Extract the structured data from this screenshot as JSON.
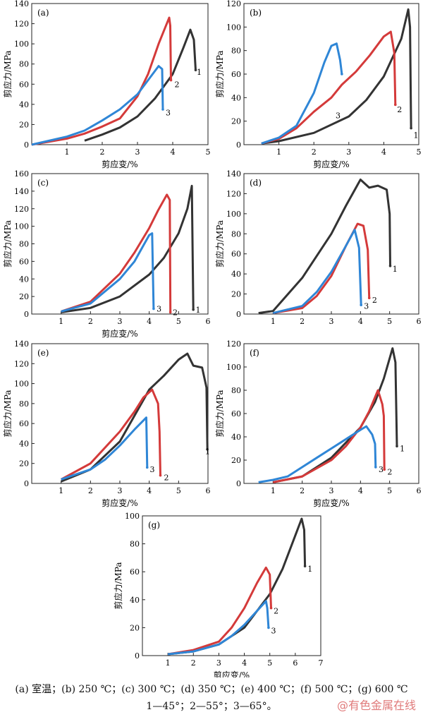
{
  "caption": {
    "line1": "(a) 室温；(b) 250 ℃；(c) 300 ℃；(d) 350 ℃；(e) 400 ℃；(f) 500 ℃；(g) 600 ℃",
    "line2": "1—45°；2—55°；3—65°。"
  },
  "watermark": "@有色金属在线",
  "series_colors": {
    "1": "#333333",
    "2": "#d43a3a",
    "3": "#2f86d6"
  },
  "chart_data": [
    {
      "type": "line",
      "panel": "(a)",
      "xlabel": "剪应变/%",
      "ylabel": "剪应力/MPa",
      "xlim": [
        0,
        5
      ],
      "ylim": [
        0,
        140
      ],
      "xticks": [
        1,
        2,
        3,
        4,
        5
      ],
      "yticks": [
        0,
        20,
        40,
        60,
        80,
        100,
        120,
        140
      ],
      "series": [
        {
          "name": "1",
          "x": [
            1.5,
            2,
            2.5,
            3,
            3.5,
            4,
            4.3,
            4.5,
            4.6,
            4.65
          ],
          "y": [
            4,
            10,
            17,
            28,
            46,
            70,
            96,
            114,
            104,
            74
          ],
          "label_at": [
            4.68,
            72
          ]
        },
        {
          "name": "2",
          "x": [
            0,
            1,
            1.5,
            2,
            2.5,
            3,
            3.3,
            3.6,
            3.9,
            3.93,
            3.95
          ],
          "y": [
            0,
            6,
            11,
            18,
            26,
            48,
            70,
            100,
            126,
            118,
            64
          ],
          "label_at": [
            4.05,
            60
          ]
        },
        {
          "name": "3",
          "x": [
            0,
            1,
            1.5,
            2,
            2.5,
            3,
            3.3,
            3.6,
            3.7,
            3.72
          ],
          "y": [
            0,
            8,
            14,
            24,
            35,
            50,
            64,
            78,
            75,
            35
          ],
          "label_at": [
            3.8,
            32
          ]
        }
      ]
    },
    {
      "type": "line",
      "panel": "(b)",
      "xlabel": "剪应变/%",
      "ylabel": "剪应力/MPa",
      "xlim": [
        0,
        5
      ],
      "ylim": [
        0,
        120
      ],
      "xticks": [
        1,
        2,
        3,
        4,
        5
      ],
      "yticks": [
        0,
        20,
        40,
        60,
        80,
        100,
        120
      ],
      "series": [
        {
          "name": "1",
          "x": [
            0.5,
            1,
            2,
            3,
            3.5,
            4,
            4.5,
            4.7,
            4.75,
            4.78
          ],
          "y": [
            1,
            3,
            10,
            24,
            38,
            58,
            90,
            115,
            100,
            14
          ],
          "label_at": [
            4.85,
            8
          ]
        },
        {
          "name": "2",
          "x": [
            0.5,
            1,
            1.5,
            2,
            2.5,
            2.8,
            3.2,
            3.6,
            4,
            4.2,
            4.3,
            4.33
          ],
          "y": [
            1,
            5,
            14,
            28,
            40,
            51,
            62,
            76,
            92,
            96,
            78,
            34
          ],
          "label_at": [
            4.38,
            30
          ]
        },
        {
          "name": "3",
          "x": [
            0.5,
            1,
            1.5,
            2,
            2.3,
            2.5,
            2.65,
            2.75,
            2.8
          ],
          "y": [
            1,
            6,
            16,
            44,
            70,
            84,
            86,
            72,
            60
          ],
          "label_at": [
            2.62,
            25
          ]
        }
      ]
    },
    {
      "type": "line",
      "panel": "(c)",
      "xlabel": "剪应变/%",
      "ylabel": "剪应力/MPa",
      "xlim": [
        0,
        6
      ],
      "ylim": [
        0,
        160
      ],
      "xticks": [
        1,
        2,
        3,
        4,
        5,
        6
      ],
      "yticks": [
        0,
        20,
        40,
        60,
        80,
        100,
        120,
        140,
        160
      ],
      "series": [
        {
          "name": "1",
          "x": [
            1,
            2,
            3,
            4,
            4.5,
            5,
            5.3,
            5.45,
            5.5
          ],
          "y": [
            2,
            7,
            20,
            45,
            64,
            92,
            120,
            146,
            5
          ],
          "label_at": [
            5.58,
            5
          ]
        },
        {
          "name": "2",
          "x": [
            1,
            2,
            3,
            3.5,
            4,
            4.3,
            4.6,
            4.7,
            4.72
          ],
          "y": [
            3,
            14,
            46,
            70,
            98,
            118,
            136,
            130,
            2
          ],
          "label_at": [
            4.8,
            2
          ]
        },
        {
          "name": "3",
          "x": [
            1,
            2,
            3,
            3.5,
            3.8,
            4,
            4.1,
            4.15
          ],
          "y": [
            3,
            12,
            40,
            60,
            78,
            90,
            92,
            6
          ],
          "label_at": [
            4.25,
            6
          ]
        }
      ]
    },
    {
      "type": "line",
      "panel": "(d)",
      "xlabel": "",
      "ylabel": "剪应力/MPa",
      "xlim": [
        0,
        6
      ],
      "ylim": [
        0,
        140
      ],
      "xticks": [
        1,
        2,
        3,
        4,
        5,
        6
      ],
      "yticks": [
        0,
        20,
        40,
        60,
        80,
        100,
        120,
        140
      ],
      "series": [
        {
          "name": "1",
          "x": [
            0.5,
            1,
            2,
            3,
            3.5,
            4,
            4.3,
            4.6,
            4.9,
            5,
            5.02
          ],
          "y": [
            1,
            3,
            36,
            80,
            108,
            134,
            126,
            128,
            124,
            100,
            48
          ],
          "label_at": [
            5.1,
            45
          ]
        },
        {
          "name": "2",
          "x": [
            1,
            2,
            2.5,
            3,
            3.5,
            3.9,
            4.1,
            4.25,
            4.3
          ],
          "y": [
            1,
            6,
            18,
            38,
            68,
            90,
            88,
            64,
            16
          ],
          "label_at": [
            4.4,
            14
          ]
        },
        {
          "name": "3",
          "x": [
            1,
            2,
            2.5,
            3,
            3.5,
            3.8,
            3.95,
            4.02
          ],
          "y": [
            1,
            8,
            22,
            42,
            68,
            84,
            66,
            9
          ],
          "label_at": [
            4.12,
            8
          ]
        }
      ]
    },
    {
      "type": "line",
      "panel": "(e)",
      "xlabel": "剪应变/%",
      "ylabel": "剪应力/MPa",
      "xlim": [
        0,
        6
      ],
      "ylim": [
        0,
        140
      ],
      "xticks": [
        1,
        2,
        3,
        4,
        5,
        6
      ],
      "yticks": [
        0,
        20,
        40,
        60,
        80,
        100,
        120,
        140
      ],
      "series": [
        {
          "name": "1",
          "x": [
            1,
            2,
            3,
            4,
            4.5,
            5,
            5.3,
            5.5,
            5.8,
            5.95,
            5.98
          ],
          "y": [
            2,
            14,
            42,
            94,
            108,
            124,
            130,
            118,
            116,
            96,
            34
          ],
          "label_at": [
            5.9,
            32
          ]
        },
        {
          "name": "2",
          "x": [
            1,
            2,
            3,
            3.5,
            3.8,
            4.1,
            4.3,
            4.35,
            4.38
          ],
          "y": [
            4,
            20,
            52,
            72,
            86,
            94,
            80,
            52,
            8
          ],
          "label_at": [
            4.5,
            6
          ]
        },
        {
          "name": "3",
          "x": [
            1,
            2,
            2.5,
            3,
            3.5,
            3.9,
            3.93
          ],
          "y": [
            4,
            14,
            24,
            38,
            54,
            66,
            16
          ],
          "label_at": [
            4.02,
            14
          ]
        }
      ]
    },
    {
      "type": "line",
      "panel": "(f)",
      "xlabel": "剪应变/%",
      "ylabel": "剪应力/MPa",
      "xlim": [
        0,
        6
      ],
      "ylim": [
        0,
        120
      ],
      "xticks": [
        1,
        2,
        3,
        4,
        5,
        6
      ],
      "yticks": [
        0,
        20,
        40,
        60,
        80,
        100,
        120
      ],
      "series": [
        {
          "name": "1",
          "x": [
            1,
            2,
            3,
            4,
            4.5,
            4.8,
            5.1,
            5.2,
            5.25
          ],
          "y": [
            1,
            6,
            22,
            48,
            70,
            90,
            116,
            104,
            32
          ],
          "label_at": [
            5.35,
            30
          ]
        },
        {
          "name": "2",
          "x": [
            1,
            2,
            3,
            3.5,
            4,
            4.3,
            4.6,
            4.75,
            4.8,
            4.82
          ],
          "y": [
            1,
            6,
            20,
            32,
            48,
            62,
            80,
            68,
            58,
            12
          ],
          "label_at": [
            4.92,
            10
          ]
        },
        {
          "name": "3",
          "x": [
            0.5,
            1,
            1.5,
            2,
            2.5,
            3,
            3.5,
            4,
            4.2,
            4.4,
            4.5,
            4.52
          ],
          "y": [
            1,
            3,
            6,
            14,
            22,
            30,
            38,
            46,
            49,
            42,
            34,
            14
          ],
          "label_at": [
            4.62,
            12
          ]
        }
      ]
    },
    {
      "type": "line",
      "panel": "(g)",
      "xlabel": "剪应变/%",
      "ylabel": "剪应力/MPa",
      "xlim": [
        0,
        7
      ],
      "ylim": [
        0,
        100
      ],
      "xticks": [
        1,
        2,
        3,
        4,
        5,
        6,
        7
      ],
      "yticks": [
        0,
        20,
        40,
        60,
        80,
        100
      ],
      "series": [
        {
          "name": "1",
          "x": [
            1,
            2,
            3,
            4,
            5,
            5.5,
            6,
            6.25,
            6.35,
            6.38
          ],
          "y": [
            1,
            3,
            8,
            20,
            44,
            62,
            86,
            98,
            90,
            64
          ],
          "label_at": [
            6.48,
            62
          ]
        },
        {
          "name": "2",
          "x": [
            1,
            2,
            3,
            3.5,
            4,
            4.5,
            4.85,
            5,
            5.05
          ],
          "y": [
            1,
            4,
            10,
            20,
            34,
            52,
            63,
            58,
            34
          ],
          "label_at": [
            5.15,
            32
          ]
        },
        {
          "name": "3",
          "x": [
            1,
            2,
            3,
            3.5,
            4,
            4.5,
            4.85,
            4.9,
            4.95
          ],
          "y": [
            1,
            3,
            8,
            14,
            22,
            32,
            39,
            34,
            20
          ],
          "label_at": [
            5.05,
            18
          ]
        }
      ]
    }
  ]
}
